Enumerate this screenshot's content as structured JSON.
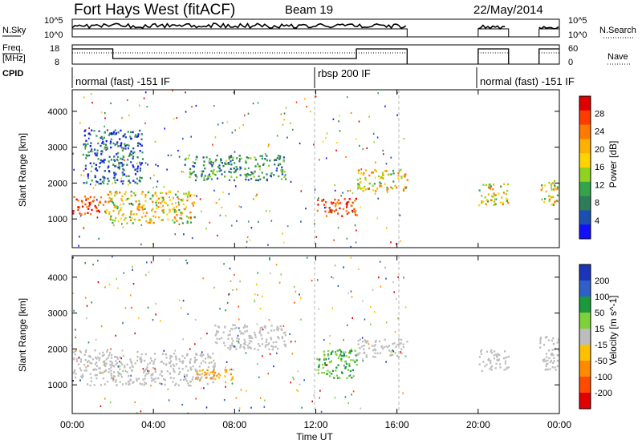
{
  "header": {
    "title": "Fort Hays West (fitACF)",
    "beam": "Beam 19",
    "date": "22/May/2014"
  },
  "strip_panels": {
    "nsky": {
      "left_label": "N.Sky",
      "right_label": "N.Search",
      "tick_labels": [
        "10^5",
        "10^0"
      ],
      "right_tick_labels": [
        "10^5",
        "10^0"
      ]
    },
    "freq": {
      "left_label_line1": "Freq.",
      "left_label_line2": "[MHz]",
      "right_label": "Nave",
      "tick_labels": [
        "18",
        "8"
      ],
      "right_tick_labels": [
        "60",
        "0"
      ]
    },
    "cpid": {
      "label": "CPID",
      "segments": [
        {
          "label": "normal (fast) -151 IF"
        },
        {
          "label": "rbsp 200 IF"
        },
        {
          "label": "normal (fast) -151 IF"
        }
      ]
    }
  },
  "chart_data": [
    {
      "type": "heatmap",
      "name": "power",
      "xlabel": "",
      "ylabel": "Slant Range [km]",
      "ylim": [
        200,
        4600
      ],
      "yticks": [
        1000,
        2000,
        3000,
        4000
      ],
      "colorbar": {
        "label": "Power [dB]",
        "ticks": [
          "4",
          "8",
          "12",
          "16",
          "20",
          "24",
          "28"
        ],
        "colors": [
          "#1010ff",
          "#1d4fb0",
          "#2e7d5a",
          "#35a34a",
          "#8fd21f",
          "#ffd400",
          "#ffb000",
          "#ff7a00",
          "#ff3c00",
          "#e00000"
        ]
      },
      "echo_regions": [
        {
          "x": [
            0.0,
            1.6
          ],
          "y": [
            1150,
            1700
          ],
          "level": "high"
        },
        {
          "x": [
            1.6,
            6.0
          ],
          "y": [
            900,
            1800
          ],
          "level": "medium"
        },
        {
          "x": [
            0.5,
            3.5
          ],
          "y": [
            2000,
            3500
          ],
          "level": "low"
        },
        {
          "x": [
            5.5,
            10.5
          ],
          "y": [
            2100,
            2800
          ],
          "level": "low-medium"
        },
        {
          "x": [
            12.0,
            14.0
          ],
          "y": [
            1100,
            1600
          ],
          "level": "high"
        },
        {
          "x": [
            14.0,
            16.5
          ],
          "y": [
            1800,
            2400
          ],
          "level": "medium"
        },
        {
          "x": [
            20.0,
            21.5
          ],
          "y": [
            1400,
            2000
          ],
          "level": "medium"
        },
        {
          "x": [
            23.0,
            24.0
          ],
          "y": [
            1400,
            2100
          ],
          "level": "medium"
        }
      ]
    },
    {
      "type": "heatmap",
      "name": "velocity",
      "xlabel": "Time UT",
      "ylabel": "Slant Range [km]",
      "ylim": [
        200,
        4600
      ],
      "yticks": [
        1000,
        2000,
        3000,
        4000
      ],
      "x_tick_labels": [
        "00:00",
        "04:00",
        "08:00",
        "12:00",
        "16:00",
        "20:00",
        "00:00"
      ],
      "colorbar": {
        "label": "Velocity [m s^-1]",
        "ticks": [
          "200",
          "100",
          "50",
          "15",
          "-15",
          "-50",
          "-100",
          "-200"
        ],
        "colors": [
          "#1c35b8",
          "#2f5fc9",
          "#1a9a3a",
          "#7fd13a",
          "#bdbdbd",
          "#ffc000",
          "#ff8a00",
          "#ff4a00",
          "#e00000"
        ]
      },
      "echo_regions": [
        {
          "x": [
            0.0,
            2.0
          ],
          "y": [
            1000,
            2000
          ],
          "level": "near-zero"
        },
        {
          "x": [
            2.0,
            7.0
          ],
          "y": [
            1000,
            1900
          ],
          "level": "near-zero"
        },
        {
          "x": [
            7.0,
            10.5
          ],
          "y": [
            2000,
            2700
          ],
          "level": "near-zero"
        },
        {
          "x": [
            6.0,
            8.0
          ],
          "y": [
            1150,
            1450
          ],
          "level": "negative"
        },
        {
          "x": [
            12.0,
            14.0
          ],
          "y": [
            1200,
            2000
          ],
          "level": "positive"
        },
        {
          "x": [
            14.0,
            16.5
          ],
          "y": [
            1800,
            2300
          ],
          "level": "near-zero"
        },
        {
          "x": [
            20.0,
            21.5
          ],
          "y": [
            1400,
            2000
          ],
          "level": "near-zero"
        },
        {
          "x": [
            23.0,
            24.0
          ],
          "y": [
            1400,
            2400
          ],
          "level": "near-zero"
        }
      ]
    }
  ]
}
